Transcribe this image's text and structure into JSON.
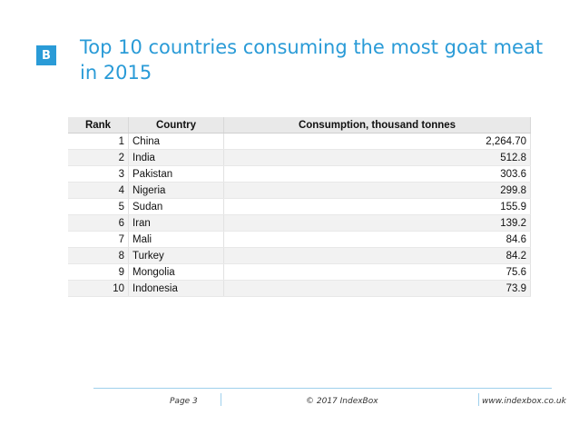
{
  "slide": {
    "logo_letter": "B",
    "title": "Top 10 countries consuming the most goat meat in 2015",
    "accent_color": "#2a9bd7"
  },
  "table": {
    "headers": [
      "Rank",
      "Country",
      "Consumption, thousand tonnes"
    ],
    "rows": [
      [
        "1",
        "China",
        "2,264.70"
      ],
      [
        "2",
        "India",
        "512.8"
      ],
      [
        "3",
        "Pakistan",
        "303.6"
      ],
      [
        "4",
        "Nigeria",
        "299.8"
      ],
      [
        "5",
        "Sudan",
        "155.9"
      ],
      [
        "6",
        "Iran",
        "139.2"
      ],
      [
        "7",
        "Mali",
        "84.6"
      ],
      [
        "8",
        "Turkey",
        "84.2"
      ],
      [
        "9",
        "Mongolia",
        "75.6"
      ],
      [
        "10",
        "Indonesia",
        "73.9"
      ]
    ]
  },
  "footer": {
    "page": "Page 3",
    "copyright": "© 2017 IndexBox",
    "url": "www.indexbox.co.uk"
  }
}
